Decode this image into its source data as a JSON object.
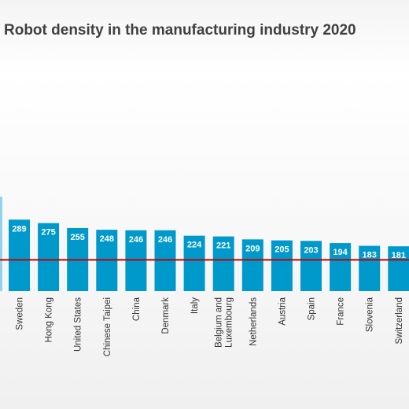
{
  "chart_data": {
    "type": "bar",
    "title": "Robot density in the manufacturing industry 2020",
    "categories": [
      "Sweden",
      "Hong Kong",
      "United States",
      "Chinese Taipei",
      "China",
      "Denmark",
      "Italy",
      "Belgium and\nLuxembourg",
      "Netherlands",
      "Austria",
      "Spain",
      "France",
      "Slovenia",
      "Switzerland"
    ],
    "values": [
      289,
      275,
      255,
      248,
      246,
      246,
      224,
      221,
      209,
      205,
      203,
      194,
      183,
      181
    ],
    "reference_line": {
      "value": 126,
      "color": "#c00000"
    },
    "colors": {
      "bar": "#0099cc",
      "bar_label": "#ffffff",
      "partial_bar": "#8fd3ef"
    },
    "grid": false,
    "legend": "none"
  }
}
